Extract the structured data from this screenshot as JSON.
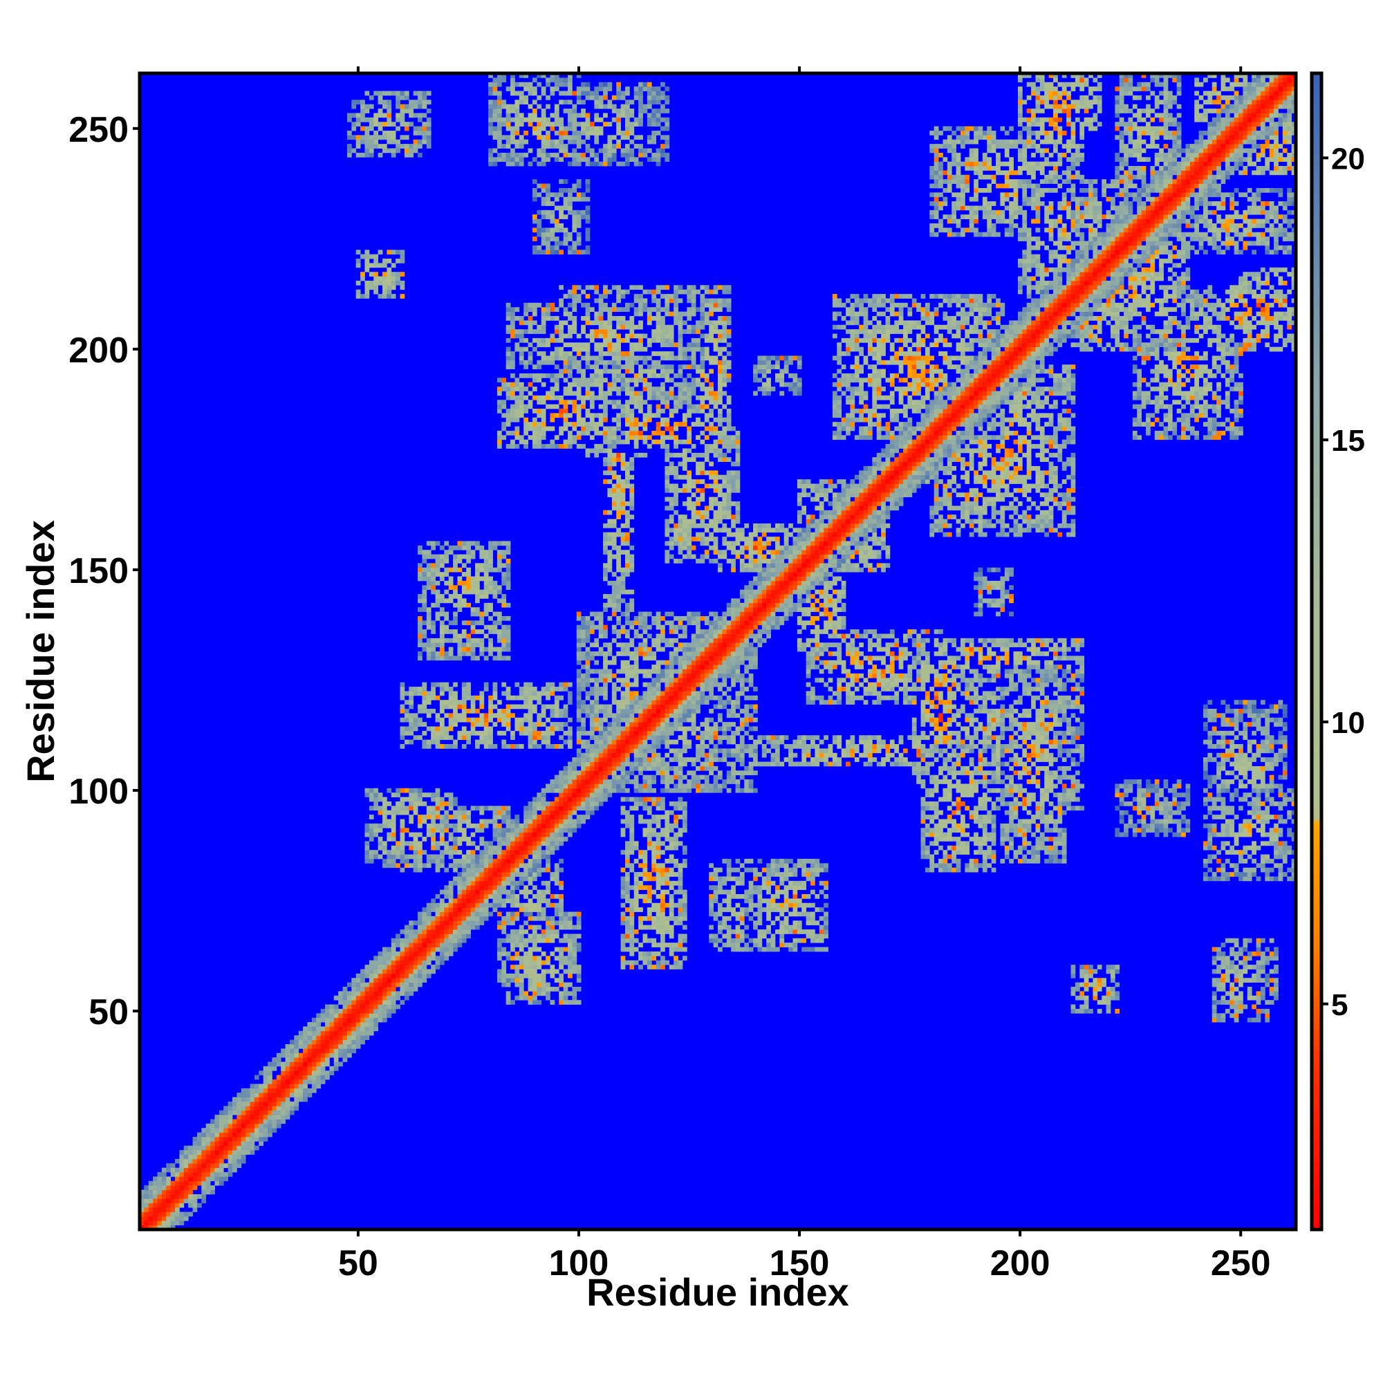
{
  "chart_data": {
    "type": "heatmap",
    "title": "",
    "xlabel": "Residue index",
    "ylabel": "Residue index",
    "x_range": [
      1,
      262
    ],
    "y_range": [
      1,
      262
    ],
    "x_ticks": [
      50,
      100,
      150,
      200,
      250
    ],
    "y_ticks": [
      50,
      100,
      150,
      200,
      250
    ],
    "x_tick_labels": [
      "50",
      "100",
      "150",
      "200",
      "250"
    ],
    "y_tick_labels": [
      "50",
      "100",
      "150",
      "200",
      "250"
    ],
    "colorbar": {
      "range": [
        1,
        21.5
      ],
      "ticks": [
        5,
        10,
        15,
        20
      ],
      "tick_labels": [
        "5",
        "10",
        "15",
        "20"
      ],
      "colors": [
        {
          "value": 1,
          "color": "#ff0000"
        },
        {
          "value": 4,
          "color": "#ff3300"
        },
        {
          "value": 6,
          "color": "#ff8000"
        },
        {
          "value": 8.2,
          "color": "#ffa500"
        },
        {
          "value": 8.3,
          "color": "#b4c08c"
        },
        {
          "value": 12,
          "color": "#a6bb96"
        },
        {
          "value": 16,
          "color": "#8aa6a8"
        },
        {
          "value": 21.5,
          "color": "#3a63b8"
        }
      ],
      "background_color": "#0000ff"
    },
    "grid": false,
    "legend": "colorbar-right",
    "structure": {
      "diagonal_width": 3,
      "band_width": 8,
      "contact_regions": [
        {
          "x": [
            48,
            64
          ],
          "y": [
            244,
            256
          ],
          "level": 12
        },
        {
          "x": [
            80,
            100
          ],
          "y": [
            242,
            262
          ],
          "level": 12
        },
        {
          "x": [
            90,
            102
          ],
          "y": [
            222,
            238
          ],
          "level": 14
        },
        {
          "x": [
            50,
            60
          ],
          "y": [
            212,
            222
          ],
          "level": 11
        },
        {
          "x": [
            84,
            128
          ],
          "y": [
            196,
            210
          ],
          "level": 11
        },
        {
          "x": [
            82,
            110
          ],
          "y": [
            178,
            194
          ],
          "level": 10
        },
        {
          "x": [
            104,
            132
          ],
          "y": [
            178,
            186
          ],
          "level": 8
        },
        {
          "x": [
            106,
            112
          ],
          "y": [
            140,
            210
          ],
          "level": 10
        },
        {
          "x": [
            126,
            134
          ],
          "y": [
            176,
            214
          ],
          "level": 10
        },
        {
          "x": [
            132,
            150
          ],
          "y": [
            150,
            160
          ],
          "level": 9
        },
        {
          "x": [
            64,
            84
          ],
          "y": [
            138,
            156
          ],
          "level": 11
        },
        {
          "x": [
            60,
            98
          ],
          "y": [
            110,
            124
          ],
          "level": 10
        },
        {
          "x": [
            100,
            134
          ],
          "y": [
            100,
            140
          ],
          "level": 11
        },
        {
          "x": [
            52,
            72
          ],
          "y": [
            84,
            100
          ],
          "level": 11
        },
        {
          "x": [
            82,
            96
          ],
          "y": [
            56,
            84
          ],
          "level": 11
        },
        {
          "x": [
            110,
            124
          ],
          "y": [
            62,
            98
          ],
          "level": 10
        },
        {
          "x": [
            130,
            152
          ],
          "y": [
            64,
            84
          ],
          "level": 11
        },
        {
          "x": [
            150,
            160
          ],
          "y": [
            140,
            170
          ],
          "level": 9
        },
        {
          "x": [
            152,
            182
          ],
          "y": [
            120,
            136
          ],
          "level": 10
        },
        {
          "x": [
            176,
            190
          ],
          "y": [
            102,
            116
          ],
          "level": 9
        },
        {
          "x": [
            186,
            214
          ],
          "y": [
            96,
            126
          ],
          "level": 11
        },
        {
          "x": [
            158,
            196
          ],
          "y": [
            180,
            212
          ],
          "level": 10
        },
        {
          "x": [
            176,
            182
          ],
          "y": [
            200,
            212
          ],
          "level": 8
        },
        {
          "x": [
            194,
            210
          ],
          "y": [
            170,
            196
          ],
          "level": 9
        },
        {
          "x": [
            212,
            238
          ],
          "y": [
            200,
            236
          ],
          "level": 10
        },
        {
          "x": [
            204,
            214
          ],
          "y": [
            244,
            262
          ],
          "level": 8
        },
        {
          "x": [
            222,
            236
          ],
          "y": [
            236,
            262
          ],
          "level": 12
        },
        {
          "x": [
            226,
            250
          ],
          "y": [
            180,
            214
          ],
          "level": 11
        },
        {
          "x": [
            250,
            262
          ],
          "y": [
            200,
            218
          ],
          "level": 8
        },
        {
          "x": [
            246,
            262
          ],
          "y": [
            240,
            262
          ],
          "level": 7
        },
        {
          "x": [
            242,
            260
          ],
          "y": [
            90,
            120
          ],
          "level": 13
        },
        {
          "x": [
            246,
            258
          ],
          "y": [
            52,
            66
          ],
          "level": 11
        },
        {
          "x": [
            212,
            222
          ],
          "y": [
            50,
            60
          ],
          "level": 11
        },
        {
          "x": [
            170,
            180
          ],
          "y": [
            170,
            180
          ],
          "level": 9
        },
        {
          "x": [
            190,
            198
          ],
          "y": [
            140,
            150
          ],
          "level": 13
        }
      ]
    }
  }
}
